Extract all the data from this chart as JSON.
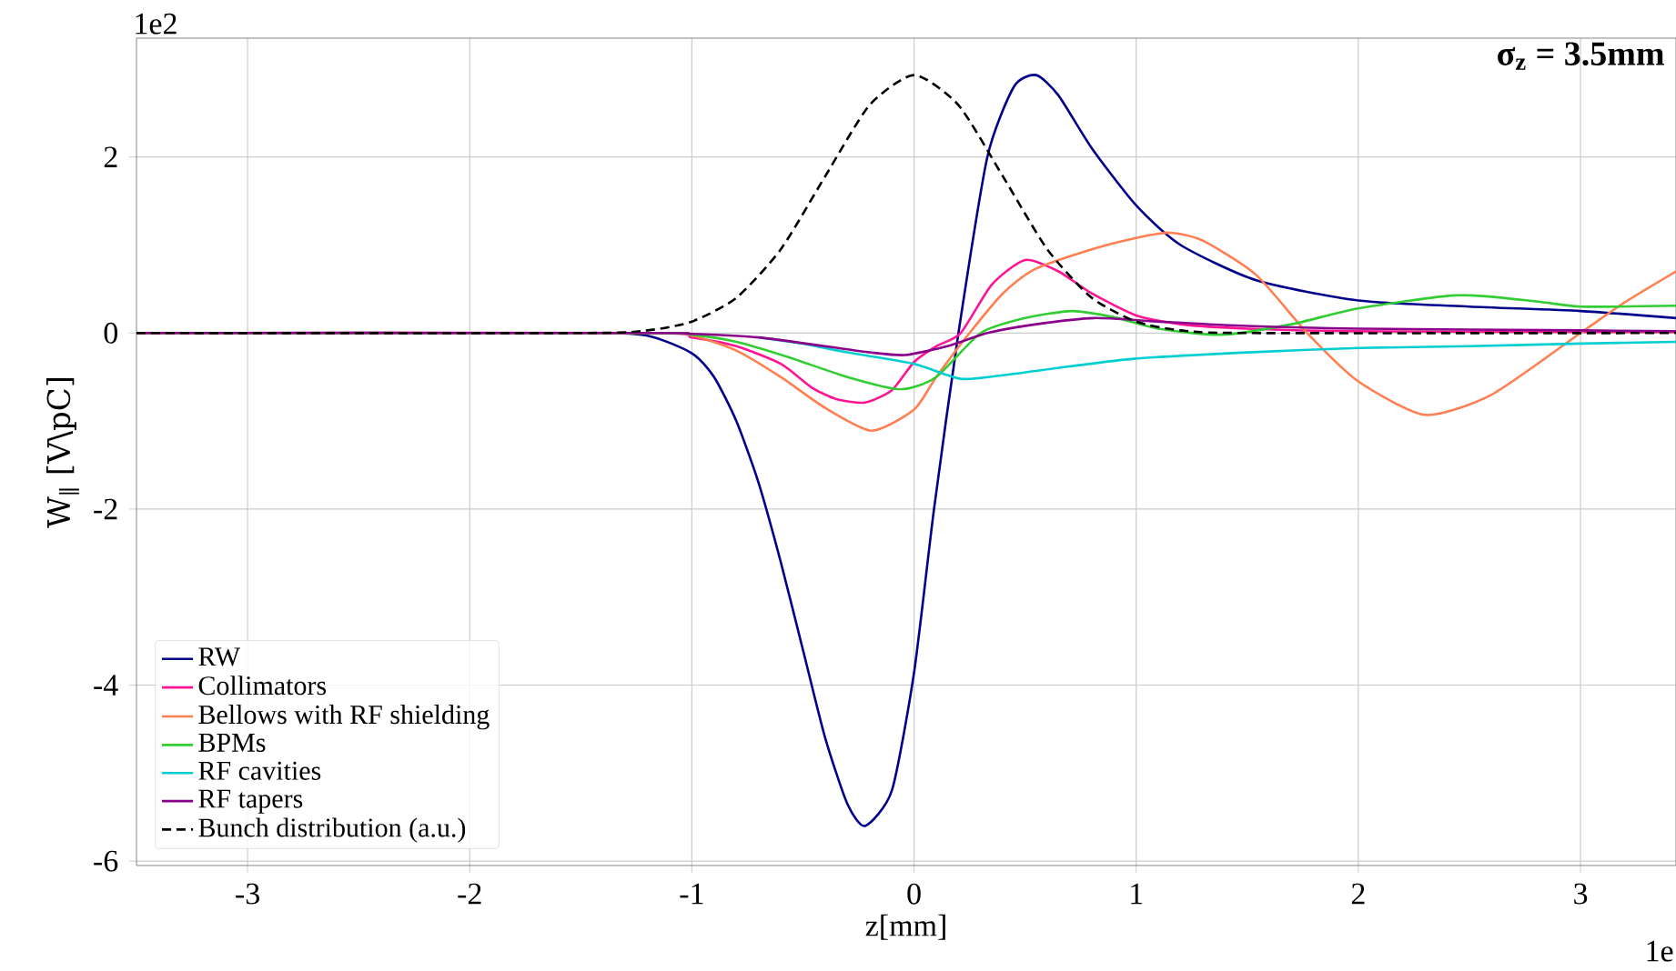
{
  "chart_data": {
    "type": "line",
    "xlabel": "z[mm]",
    "ylabel": "W$_{∥}$ [V\\pC]",
    "annotations": [
      "σ$_{z}$ = 3.5mm",
      "1e2",
      "1e"
    ],
    "xlim": [
      -3.5,
      3.43
    ],
    "ylim": [
      -6.05,
      3.35
    ],
    "xticks": [
      -3,
      -2,
      -1,
      0,
      1,
      2,
      3
    ],
    "yticks": [
      -6,
      -4,
      -2,
      0,
      2
    ],
    "grid": true,
    "legend": "bottom left",
    "series": [
      {
        "name": "RW",
        "color": "#00008b",
        "x": [
          -3.5,
          -1.5,
          -1.2,
          -1.0,
          -0.9,
          -0.8,
          -0.7,
          -0.6,
          -0.5,
          -0.4,
          -0.3,
          -0.22,
          -0.1,
          0,
          0.09,
          0.2,
          0.33,
          0.45,
          0.55,
          0.65,
          0.8,
          1.0,
          1.2,
          1.54,
          2.0,
          2.5,
          3.0,
          3.43
        ],
        "values": [
          0,
          0,
          -0.03,
          -0.23,
          -0.5,
          -1.0,
          -1.7,
          -2.6,
          -3.6,
          -4.6,
          -5.35,
          -5.6,
          -5.2,
          -3.86,
          -2.0,
          0,
          2.0,
          2.8,
          2.93,
          2.7,
          2.1,
          1.45,
          1.0,
          0.6,
          0.37,
          0.3,
          0.25,
          0.17
        ]
      },
      {
        "name": "Collimators",
        "color": "#ff1493",
        "x": [
          -3.5,
          -1.2,
          -1.0,
          -0.8,
          -0.6,
          -0.46,
          -0.35,
          -0.22,
          -0.1,
          0,
          0.1,
          0.21,
          0.35,
          0.5,
          0.65,
          0.8,
          1.0,
          1.2,
          1.5,
          2,
          3.43
        ],
        "values": [
          0,
          0,
          -0.05,
          -0.15,
          -0.35,
          -0.62,
          -0.75,
          -0.79,
          -0.65,
          -0.33,
          -0.15,
          0,
          0.55,
          0.83,
          0.7,
          0.45,
          0.2,
          0.1,
          0.05,
          0.02,
          0.01
        ]
      },
      {
        "name": "Bellows with RF shielding",
        "color": "#ff7f50",
        "x": [
          -3.5,
          -1.2,
          -1.0,
          -0.8,
          -0.6,
          -0.4,
          -0.19,
          0,
          0.1,
          0.25,
          0.4,
          0.54,
          0.8,
          1.0,
          1.15,
          1.3,
          1.54,
          1.77,
          2.0,
          2.3,
          2.6,
          3.0,
          3.2,
          3.43
        ],
        "values": [
          0,
          0,
          -0.03,
          -0.2,
          -0.5,
          -0.85,
          -1.11,
          -0.87,
          -0.5,
          0,
          0.45,
          0.72,
          0.95,
          1.08,
          1.14,
          1.05,
          0.66,
          0,
          -0.55,
          -0.93,
          -0.7,
          0,
          0.35,
          0.7
        ]
      },
      {
        "name": "BPMs",
        "color": "#32cd32",
        "x": [
          -3.5,
          -1.2,
          -1.0,
          -0.8,
          -0.57,
          -0.3,
          -0.06,
          0.1,
          0.3,
          0.5,
          0.71,
          0.9,
          1.1,
          1.38,
          1.7,
          2.0,
          2.45,
          2.8,
          3.0,
          3.43
        ],
        "values": [
          0,
          0,
          -0.02,
          -0.1,
          -0.27,
          -0.5,
          -0.64,
          -0.5,
          0,
          0.17,
          0.25,
          0.18,
          0.05,
          -0.02,
          0.1,
          0.28,
          0.43,
          0.36,
          0.3,
          0.31
        ]
      },
      {
        "name": "RF cavities",
        "color": "#00ced1",
        "x": [
          -0.7,
          -0.5,
          -0.3,
          0,
          0.21,
          0.4,
          0.7,
          1.0,
          1.5,
          2.0,
          2.5,
          3.0,
          3.43
        ],
        "values": [
          -0.05,
          -0.12,
          -0.22,
          -0.35,
          -0.52,
          -0.48,
          -0.38,
          -0.29,
          -0.22,
          -0.17,
          -0.15,
          -0.12,
          -0.1
        ]
      },
      {
        "name": "RF tapers",
        "color": "#8b008b",
        "x": [
          -3.5,
          -1.2,
          -1.0,
          -0.7,
          -0.4,
          -0.2,
          -0.04,
          0.15,
          0.33,
          0.55,
          0.81,
          1.1,
          1.5,
          2.0,
          3.0,
          3.43
        ],
        "values": [
          0,
          0,
          -0.01,
          -0.05,
          -0.15,
          -0.22,
          -0.25,
          -0.15,
          0,
          0.1,
          0.17,
          0.13,
          0.08,
          0.05,
          0.03,
          0.02
        ]
      },
      {
        "name": "Bunch distribution (a.u.)",
        "color": "#000000",
        "line_style": "dashed",
        "x": [
          -3.5,
          -1.5,
          -1.2,
          -1.0,
          -0.8,
          -0.6,
          -0.4,
          -0.2,
          0,
          0.2,
          0.4,
          0.6,
          0.8,
          1.0,
          1.2,
          1.5,
          3.43
        ],
        "values": [
          0,
          0,
          0.03,
          0.13,
          0.4,
          0.95,
          1.78,
          2.59,
          2.93,
          2.59,
          1.78,
          0.95,
          0.4,
          0.13,
          0.03,
          0,
          0
        ]
      }
    ]
  }
}
